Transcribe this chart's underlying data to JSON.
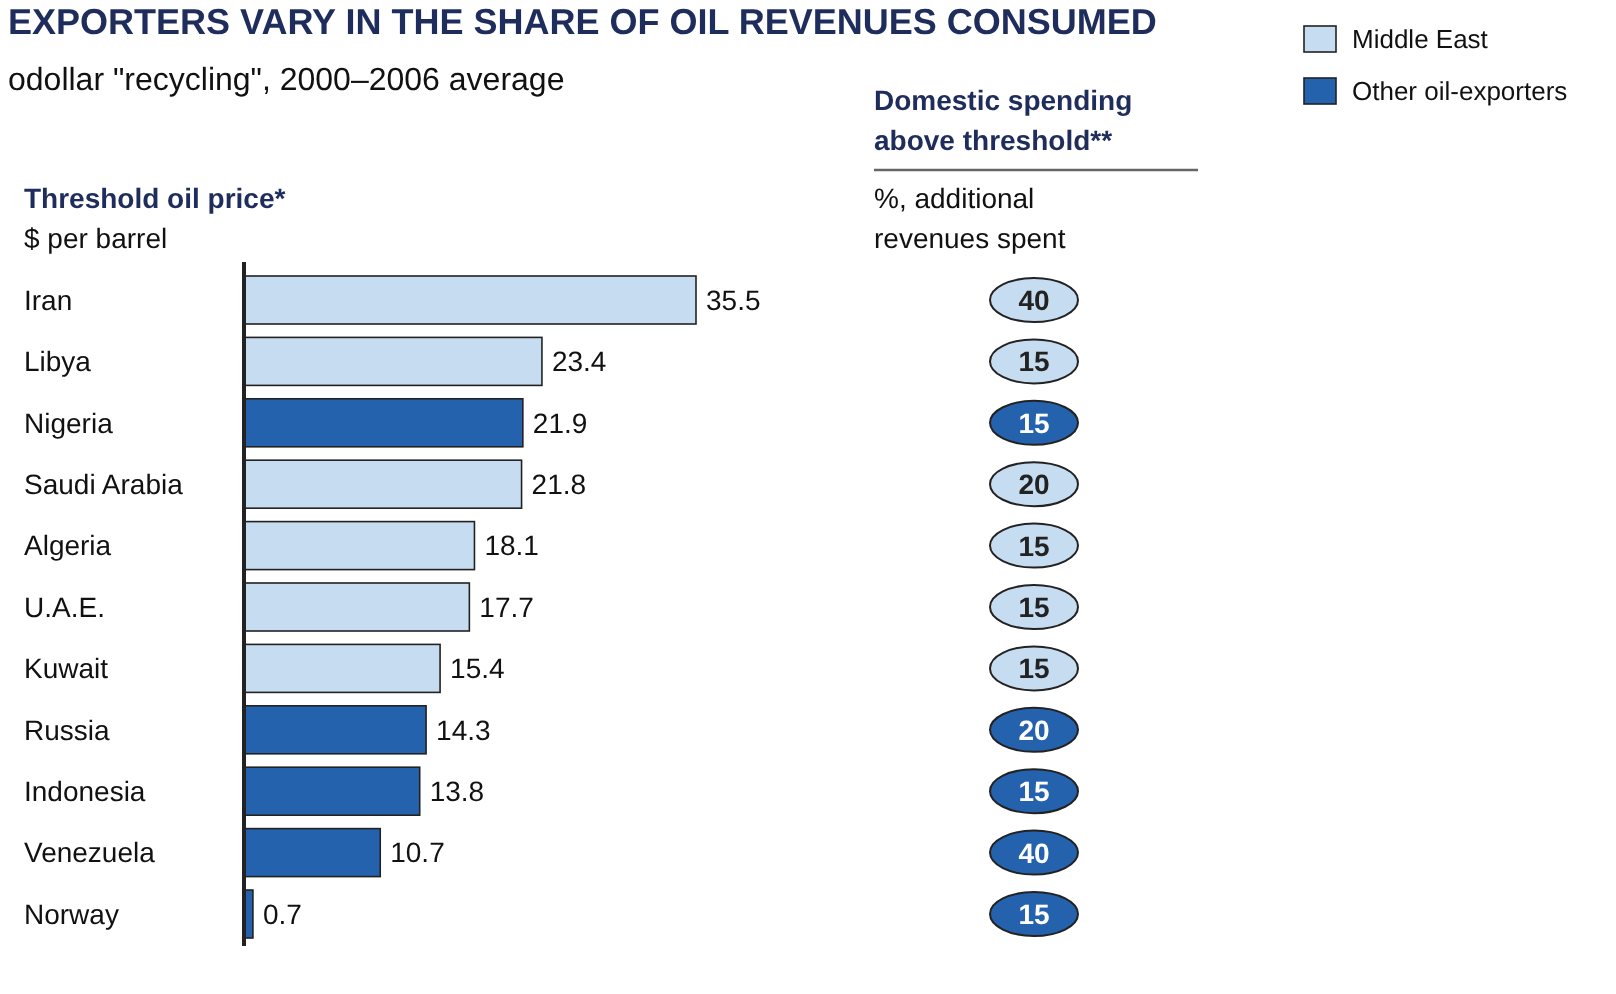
{
  "chart_data": [
    {
      "type": "bar",
      "orientation": "horizontal",
      "title": "EXPORTERS VARY IN THE SHARE OF OIL REVENUES CONSUMED",
      "subtitle": "odollar \"recycling\", 2000–2006 average",
      "xlabel": "Threshold oil price*",
      "annotations": [
        "$ per barrel"
      ],
      "categories": [
        "Iran",
        "Libya",
        "Nigeria",
        "Saudi Arabia",
        "Algeria",
        "U.A.E.",
        "Kuwait",
        "Russia",
        "Indonesia",
        "Venezuela",
        "Norway"
      ],
      "series": [
        {
          "name": "Middle East",
          "color": "#c6dcf1",
          "values": [
            35.5,
            23.4,
            null,
            21.8,
            18.1,
            17.7,
            15.4,
            null,
            null,
            null,
            null
          ]
        },
        {
          "name": "Other oil-exporters",
          "color": "#2462ae",
          "values": [
            null,
            null,
            21.9,
            null,
            null,
            null,
            null,
            14.3,
            13.8,
            10.7,
            0.7
          ]
        }
      ],
      "data_labels": true,
      "legend": "top right"
    },
    {
      "type": "other",
      "data_labels": true,
      "title": "Domestic spending above threshold**",
      "subtitle": "%, additional revenues spent",
      "categories": [
        null,
        null,
        null,
        null,
        null,
        null,
        null,
        null,
        null,
        null,
        null
      ],
      "values": [
        40,
        15,
        15,
        20,
        15,
        15,
        15,
        20,
        15,
        40,
        15
      ],
      "colors": [
        "#c6dcf1",
        "#c6dcf1",
        "#2462ae",
        "#c6dcf1",
        "#c6dcf1",
        "#c6dcf1",
        "#c6dcf1",
        "#2462ae",
        "#2462ae",
        "#2462ae",
        "#2462ae"
      ]
    }
  ]
}
